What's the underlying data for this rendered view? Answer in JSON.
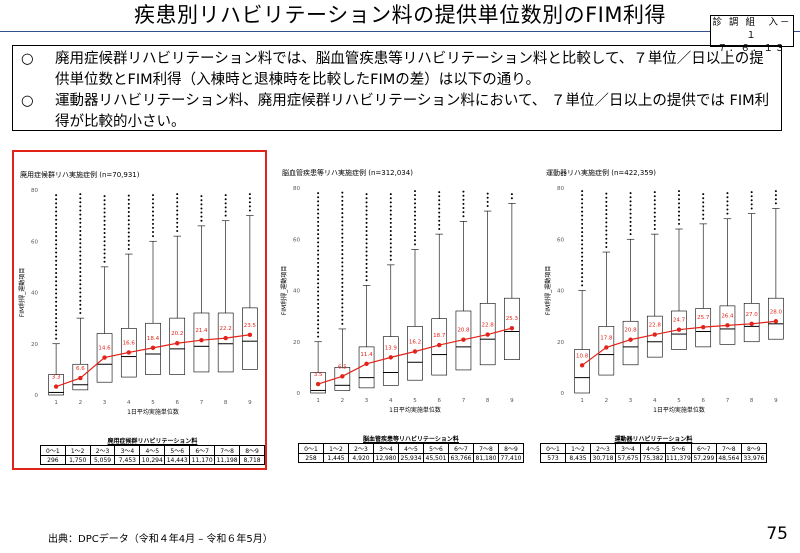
{
  "page_title": "疾患別リハビリテーション料の提供単位数別のFIM利得",
  "ref_tag": {
    "line1": "診 調 組　入－１",
    "line2": "７．６．１３"
  },
  "summary": [
    {
      "mark": "○",
      "text": "廃用症候群リハビリテーション料では、脳血管疾患等リハビリテーション料と比較して、７単位／日以上の提供単位数とFIM利得（入棟時と退棟時を比較したFIMの差）は以下の通り。"
    },
    {
      "mark": "○",
      "text": "運動器リハビリテーション料、廃用症候群リハビリテーション料において、 ７単位／日以上の提供では FIM利得が比較的小さい。"
    }
  ],
  "source": "出典：DPCデータ（令和４年4月 – 令和６年5月）",
  "page_number": "75",
  "colors": {
    "highlight": "#e2231a",
    "mean_line": "#e2231a",
    "title_rule": "#2f4f8f"
  },
  "chart_data": [
    {
      "type": "box",
      "title": "廃用症候群リハ実施症例 (n=70,931)",
      "xlabel": "1日平均実施単位数",
      "ylabel": "FIM利得_運動項目",
      "ylim": [
        0,
        80
      ],
      "yticks": [
        0,
        20,
        40,
        60,
        80
      ],
      "categories": [
        "1",
        "2",
        "3",
        "4",
        "5",
        "6",
        "7",
        "8",
        "9"
      ],
      "means": [
        3.3,
        6.6,
        14.6,
        16.6,
        18.4,
        20.2,
        21.4,
        22.2,
        23.5
      ],
      "boxes": [
        {
          "q1": 0,
          "median": 1,
          "q3": 8,
          "whisker_hi": 20
        },
        {
          "q1": 2,
          "median": 4,
          "q3": 12,
          "whisker_hi": 30
        },
        {
          "q1": 5,
          "median": 12,
          "q3": 24,
          "whisker_hi": 50
        },
        {
          "q1": 7,
          "median": 15,
          "q3": 26,
          "whisker_hi": 55
        },
        {
          "q1": 8,
          "median": 16,
          "q3": 28,
          "whisker_hi": 60
        },
        {
          "q1": 8,
          "median": 18,
          "q3": 30,
          "whisker_hi": 62
        },
        {
          "q1": 9,
          "median": 19,
          "q3": 32,
          "whisker_hi": 66
        },
        {
          "q1": 9,
          "median": 20,
          "q3": 32,
          "whisker_hi": 68
        },
        {
          "q1": 10,
          "median": 21,
          "q3": 34,
          "whisker_hi": 70
        }
      ],
      "table": {
        "caption": "廃用症候群リハビリテーション料",
        "headers": [
          "0～1",
          "1～2",
          "2～3",
          "3～4",
          "4～5",
          "5～6",
          "6～7",
          "7～8",
          "8～9"
        ],
        "values": [
          "296",
          "1,750",
          "5,059",
          "7,453",
          "10,294",
          "14,443",
          "11,170",
          "11,198",
          "8,718"
        ]
      }
    },
    {
      "type": "box",
      "title": "脳血管疾患等リハ実施症例 (n=312,034)",
      "xlabel": "1日平均実施単位数",
      "ylabel": "FIM利得_運動項目",
      "ylim": [
        0,
        80
      ],
      "yticks": [
        0,
        20,
        40,
        60,
        80
      ],
      "categories": [
        "1",
        "2",
        "3",
        "4",
        "5",
        "6",
        "7",
        "8",
        "9"
      ],
      "means": [
        3.5,
        6.5,
        11.4,
        13.9,
        16.2,
        18.7,
        20.8,
        22.8,
        25.3
      ],
      "boxes": [
        {
          "q1": 0,
          "median": 1,
          "q3": 8,
          "whisker_hi": 20
        },
        {
          "q1": 1,
          "median": 3,
          "q3": 10,
          "whisker_hi": 25
        },
        {
          "q1": 2,
          "median": 6,
          "q3": 18,
          "whisker_hi": 42
        },
        {
          "q1": 3,
          "median": 8,
          "q3": 22,
          "whisker_hi": 50
        },
        {
          "q1": 5,
          "median": 12,
          "q3": 26,
          "whisker_hi": 56
        },
        {
          "q1": 7,
          "median": 15,
          "q3": 29,
          "whisker_hi": 62
        },
        {
          "q1": 9,
          "median": 18,
          "q3": 32,
          "whisker_hi": 67
        },
        {
          "q1": 11,
          "median": 21,
          "q3": 35,
          "whisker_hi": 71
        },
        {
          "q1": 13,
          "median": 24,
          "q3": 37,
          "whisker_hi": 74
        }
      ],
      "table": {
        "caption": "脳血管疾患等リハビリテーション料",
        "headers": [
          "0～1",
          "1～2",
          "2～3",
          "3～4",
          "4～5",
          "5～6",
          "6～7",
          "7～8",
          "8～9"
        ],
        "values": [
          "258",
          "1,445",
          "4,920",
          "12,980",
          "25,934",
          "45,501",
          "63,766",
          "81,180",
          "77,410"
        ]
      }
    },
    {
      "type": "box",
      "title": "運動器リハ実施症例 (n=422,359)",
      "xlabel": "1日平均実施単位数",
      "ylabel": "FIM利得_運動項目",
      "ylim": [
        0,
        80
      ],
      "yticks": [
        0,
        20,
        40,
        60,
        80
      ],
      "categories": [
        "1",
        "2",
        "3",
        "4",
        "5",
        "6",
        "7",
        "8",
        "9"
      ],
      "means": [
        10.8,
        17.8,
        20.8,
        22.8,
        24.7,
        25.7,
        26.4,
        27.0,
        28.0
      ],
      "boxes": [
        {
          "q1": 0,
          "median": 6,
          "q3": 17,
          "whisker_hi": 40
        },
        {
          "q1": 7,
          "median": 15,
          "q3": 26,
          "whisker_hi": 55
        },
        {
          "q1": 11,
          "median": 18,
          "q3": 28,
          "whisker_hi": 60
        },
        {
          "q1": 14,
          "median": 20,
          "q3": 30,
          "whisker_hi": 62
        },
        {
          "q1": 17,
          "median": 23,
          "q3": 32,
          "whisker_hi": 64
        },
        {
          "q1": 18,
          "median": 24,
          "q3": 33,
          "whisker_hi": 66
        },
        {
          "q1": 19,
          "median": 25,
          "q3": 34,
          "whisker_hi": 68
        },
        {
          "q1": 20,
          "median": 26,
          "q3": 35,
          "whisker_hi": 70
        },
        {
          "q1": 21,
          "median": 27,
          "q3": 37,
          "whisker_hi": 72
        }
      ],
      "table": {
        "caption": "運動器リハビリテーション料",
        "headers": [
          "0～1",
          "1～2",
          "2～3",
          "3～4",
          "4～5",
          "5～6",
          "6～7",
          "7～8",
          "8～9"
        ],
        "values": [
          "573",
          "8,435",
          "30,718",
          "57,675",
          "75,382",
          "111,379",
          "57,299",
          "48,564",
          "33,976"
        ]
      }
    }
  ]
}
